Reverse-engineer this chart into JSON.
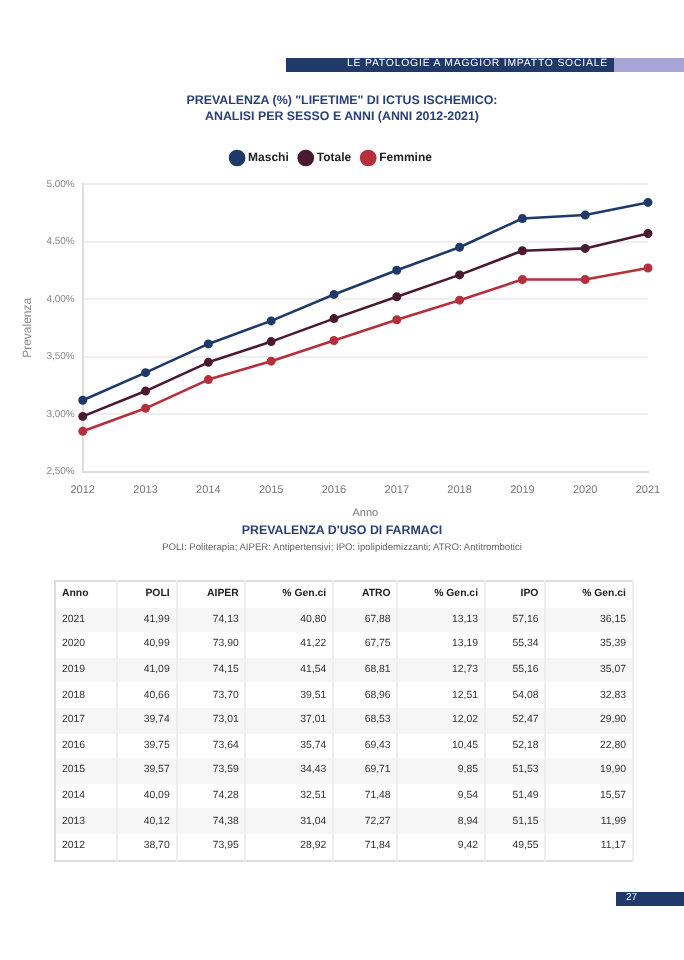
{
  "chart_data": [
    {
      "type": "line",
      "title": "PREVALENZA (%) \"LIFETIME\" DI ICTUS ISCHEMICO: ANALISI PER SESSO E ANNI (ANNI 2012-2021)",
      "xlabel": "Anno",
      "ylabel": "Prevalenza",
      "annotations": [
        "LE PATOLOGIE A MAGGIOR IMPATTO SOCIALE"
      ],
      "categories": [
        "2012",
        "2013",
        "2014",
        "2015",
        "2016",
        "2017",
        "2018",
        "2019",
        "2020",
        "2021"
      ],
      "series": [
        {
          "name": "Maschi",
          "color": "#1f3a68",
          "values": [
            3.12,
            3.36,
            3.61,
            3.81,
            4.04,
            4.25,
            4.45,
            4.7,
            4.73,
            4.84
          ]
        },
        {
          "name": "Totale",
          "color": "#4a1a30",
          "values": [
            2.98,
            3.2,
            3.45,
            3.63,
            3.83,
            4.02,
            4.21,
            4.42,
            4.44,
            4.57
          ]
        },
        {
          "name": "Femmine",
          "color": "#b5303c",
          "values": [
            2.85,
            3.05,
            3.3,
            3.46,
            3.64,
            3.82,
            3.99,
            4.17,
            4.17,
            4.27
          ]
        }
      ],
      "ylim": [
        2.5,
        5
      ],
      "yticks": [
        {
          "value": 2.5,
          "label": "2,50%"
        },
        {
          "value": 3,
          "label": "3,00%"
        },
        {
          "value": 3.5,
          "label": "3,50%"
        },
        {
          "value": 4,
          "label": "4,00%"
        },
        {
          "value": 4.5,
          "label": "4,50%"
        },
        {
          "value": 5,
          "label": "5,00%"
        }
      ],
      "grid": "y",
      "legend": "top",
      "marker": "circle",
      "line_style": "solid"
    },
    {
      "type": "heatmap",
      "title": "PREVALENZA D'USO DI FARMACI",
      "subtitle": "POLI: Politerapia; AIPER: Antipertensivi; IPO: ipolipidemizzanti; ATRO: Antitrombotici",
      "ylabel": "Anno",
      "annotations": [
        "27"
      ],
      "categories": [
        "POLI",
        "AIPER",
        "% Gen.ci",
        "ATRO",
        "% Gen.ci",
        "IPO",
        "% Gen.ci"
      ],
      "y_categories": [
        "2021",
        "2020",
        "2019",
        "2018",
        "2017",
        "2016",
        "2015",
        "2014",
        "2013",
        "2012"
      ],
      "cells": [
        [
          41.99,
          74.13,
          40.8,
          67.88,
          13.13,
          57.16,
          36.15
        ],
        [
          40.99,
          73.9,
          41.22,
          67.75,
          13.19,
          55.34,
          35.39
        ],
        [
          41.09,
          74.15,
          41.54,
          68.81,
          12.73,
          55.16,
          35.07
        ],
        [
          40.66,
          73.7,
          39.51,
          68.96,
          12.51,
          54.08,
          32.83
        ],
        [
          39.74,
          73.01,
          37.01,
          68.53,
          12.02,
          52.47,
          29.9
        ],
        [
          39.75,
          73.64,
          35.74,
          69.43,
          10.45,
          52.18,
          22.8
        ],
        [
          39.57,
          73.59,
          34.43,
          69.71,
          9.85,
          51.53,
          19.9
        ],
        [
          40.09,
          74.28,
          32.51,
          71.48,
          9.54,
          51.49,
          15.57
        ],
        [
          40.12,
          74.38,
          31.04,
          72.27,
          8.94,
          51.15,
          11.99
        ],
        [
          38.7,
          73.95,
          28.92,
          71.84,
          9.42,
          49.55,
          11.17
        ]
      ],
      "cell_labels": [
        [
          "41,99",
          "74,13",
          "40,80",
          "67,88",
          "13,13",
          "57,16",
          "36,15"
        ],
        [
          "40,99",
          "73,90",
          "41,22",
          "67,75",
          "13,19",
          "55,34",
          "35,39"
        ],
        [
          "41,09",
          "74,15",
          "41,54",
          "68,81",
          "12,73",
          "55,16",
          "35,07"
        ],
        [
          "40,66",
          "73,70",
          "39,51",
          "68,96",
          "12,51",
          "54,08",
          "32,83"
        ],
        [
          "39,74",
          "73,01",
          "37,01",
          "68,53",
          "12,02",
          "52,47",
          "29,90"
        ],
        [
          "39,75",
          "73,64",
          "35,74",
          "69,43",
          "10,45",
          "52,18",
          "22,80"
        ],
        [
          "39,57",
          "73,59",
          "34,43",
          "69,71",
          "9,85",
          "51,53",
          "19,90"
        ],
        [
          "40,09",
          "74,28",
          "32,51",
          "71,48",
          "9,54",
          "51,49",
          "15,57"
        ],
        [
          "40,12",
          "74,38",
          "31,04",
          "72,27",
          "8,94",
          "51,15",
          "11,99"
        ],
        [
          "38,70",
          "73,95",
          "28,92",
          "71,84",
          "9,42",
          "49,55",
          "11,17"
        ]
      ]
    }
  ]
}
